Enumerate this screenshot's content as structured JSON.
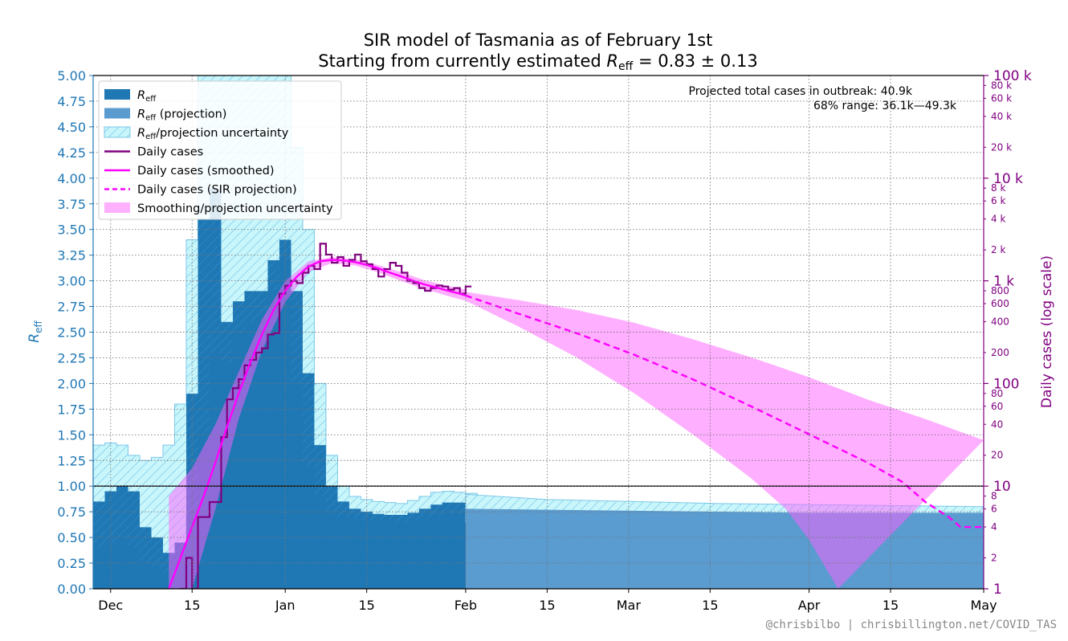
{
  "title_line1": "SIR model of Tasmania as of February 1st",
  "title_line2": "Starting from currently estimated R_eff = 0.83 ± 0.13",
  "ylabel_left": "R_eff",
  "ylabel_right": "Daily cases (log scale)",
  "annotation_line1": "Projected total cases in outbreak:  40.9k",
  "annotation_line2": "68% range:  36.1k—49.3k",
  "credit": "@chrisbilbo | chrisbillington.net/COVID_TAS",
  "legend": [
    {
      "label": "R_eff",
      "kind": "rect",
      "color": "#1f77b4"
    },
    {
      "label": "R_eff (projection)",
      "kind": "rect",
      "color": "#5a9bd0"
    },
    {
      "label": "R_eff/projection uncertainty",
      "kind": "hatch",
      "color": "#a8f0f8"
    },
    {
      "label": "Daily cases",
      "kind": "line",
      "color": "#800080"
    },
    {
      "label": "Daily cases (smoothed)",
      "kind": "line",
      "color": "#ff00ff"
    },
    {
      "label": "Daily cases (SIR projection)",
      "kind": "dash",
      "color": "#ff00ff"
    },
    {
      "label": "Smoothing/projection uncertainty",
      "kind": "rect",
      "color": "#ffb0ff"
    }
  ],
  "chart_data": {
    "type": "line",
    "x_axis": {
      "range_days": [
        -33,
        120
      ],
      "note_origin": "day 0 = Jan 1",
      "ticks": [
        {
          "day": -30,
          "label": "Dec"
        },
        {
          "day": -16,
          "label": "15"
        },
        {
          "day": 0,
          "label": "Jan"
        },
        {
          "day": 14,
          "label": "15"
        },
        {
          "day": 31,
          "label": "Feb"
        },
        {
          "day": 45,
          "label": "15"
        },
        {
          "day": 59,
          "label": "Mar"
        },
        {
          "day": 73,
          "label": "15"
        },
        {
          "day": 90,
          "label": "Apr"
        },
        {
          "day": 104,
          "label": "15"
        },
        {
          "day": 120,
          "label": "May"
        }
      ]
    },
    "y_left": {
      "range": [
        0,
        5
      ],
      "ticks": [
        "0.00",
        "0.25",
        "0.50",
        "0.75",
        "1.00",
        "1.25",
        "1.50",
        "1.75",
        "2.00",
        "2.25",
        "2.50",
        "2.75",
        "3.00",
        "3.25",
        "3.50",
        "3.75",
        "4.00",
        "4.25",
        "4.50",
        "4.75",
        "5.00"
      ]
    },
    "y_right": {
      "scale": "log",
      "range": [
        1,
        100000
      ],
      "major_ticks": [
        {
          "v": 1,
          "label": "1"
        },
        {
          "v": 10,
          "label": "10"
        },
        {
          "v": 100,
          "label": "100"
        },
        {
          "v": 1000,
          "label": "1 k"
        },
        {
          "v": 10000,
          "label": "10 k"
        },
        {
          "v": 100000,
          "label": "100 k"
        }
      ],
      "minor_ticks": [
        {
          "v": 2,
          "label": "2"
        },
        {
          "v": 4,
          "label": "4"
        },
        {
          "v": 6,
          "label": "6"
        },
        {
          "v": 8,
          "label": "8"
        },
        {
          "v": 20,
          "label": "20"
        },
        {
          "v": 40,
          "label": "40"
        },
        {
          "v": 60,
          "label": "60"
        },
        {
          "v": 80,
          "label": "80"
        },
        {
          "v": 200,
          "label": "200"
        },
        {
          "v": 400,
          "label": "400"
        },
        {
          "v": 600,
          "label": "600"
        },
        {
          "v": 800,
          "label": "800"
        },
        {
          "v": 2000,
          "label": "2 k"
        },
        {
          "v": 4000,
          "label": "4 k"
        },
        {
          "v": 6000,
          "label": "6 k"
        },
        {
          "v": 8000,
          "label": "8 k"
        },
        {
          "v": 20000,
          "label": "20 k"
        },
        {
          "v": 40000,
          "label": "40 k"
        },
        {
          "v": 60000,
          "label": "60 k"
        },
        {
          "v": 80000,
          "label": "80 k"
        }
      ]
    },
    "reference_line": 1.0,
    "reff": [
      [
        -33,
        0.85
      ],
      [
        -31,
        0.95
      ],
      [
        -29,
        1.0
      ],
      [
        -27,
        0.95
      ],
      [
        -25,
        0.6
      ],
      [
        -23,
        0.5
      ],
      [
        -21,
        0.35
      ],
      [
        -19,
        0.45
      ],
      [
        -17,
        1.9
      ],
      [
        -15,
        3.6
      ],
      [
        -13,
        3.9
      ],
      [
        -11,
        2.6
      ],
      [
        -9,
        2.8
      ],
      [
        -7,
        2.9
      ],
      [
        -5,
        2.9
      ],
      [
        -3,
        3.2
      ],
      [
        -1,
        3.4
      ],
      [
        1,
        2.9
      ],
      [
        3,
        2.1
      ],
      [
        5,
        1.4
      ],
      [
        7,
        1.0
      ],
      [
        9,
        0.85
      ],
      [
        11,
        0.78
      ],
      [
        13,
        0.75
      ],
      [
        15,
        0.73
      ],
      [
        17,
        0.72
      ],
      [
        19,
        0.72
      ],
      [
        21,
        0.74
      ],
      [
        23,
        0.78
      ],
      [
        25,
        0.82
      ],
      [
        27,
        0.84
      ],
      [
        29,
        0.84
      ],
      [
        31,
        0.83
      ]
    ],
    "reff_upper": [
      [
        -33,
        1.4
      ],
      [
        -31,
        1.42
      ],
      [
        -29,
        1.4
      ],
      [
        -27,
        1.3
      ],
      [
        -25,
        1.25
      ],
      [
        -23,
        1.28
      ],
      [
        -21,
        1.4
      ],
      [
        -19,
        1.8
      ],
      [
        -17,
        3.4
      ],
      [
        -15,
        5.0
      ],
      [
        -13,
        5.0
      ],
      [
        -11,
        5.0
      ],
      [
        -9,
        5.0
      ],
      [
        -7,
        5.0
      ],
      [
        -5,
        5.0
      ],
      [
        -3,
        5.0
      ],
      [
        -1,
        5.0
      ],
      [
        1,
        4.3
      ],
      [
        3,
        3.5
      ],
      [
        5,
        2.0
      ],
      [
        7,
        1.3
      ],
      [
        9,
        1.0
      ],
      [
        11,
        0.9
      ],
      [
        13,
        0.87
      ],
      [
        15,
        0.85
      ],
      [
        17,
        0.84
      ],
      [
        19,
        0.83
      ],
      [
        21,
        0.86
      ],
      [
        23,
        0.9
      ],
      [
        25,
        0.94
      ],
      [
        27,
        0.95
      ],
      [
        29,
        0.94
      ],
      [
        31,
        0.93
      ]
    ],
    "reff_lower": [
      [
        -33,
        0.4
      ],
      [
        -31,
        0.45
      ],
      [
        -29,
        0.5
      ],
      [
        -27,
        0.4
      ],
      [
        -25,
        0.25
      ],
      [
        -23,
        0.2
      ],
      [
        -21,
        0.15
      ],
      [
        -19,
        0.2
      ],
      [
        -17,
        0.7
      ],
      [
        -15,
        1.5
      ],
      [
        -13,
        2.3
      ],
      [
        -11,
        2.2
      ],
      [
        -9,
        2.5
      ],
      [
        -7,
        2.6
      ],
      [
        -5,
        2.65
      ],
      [
        -3,
        2.9
      ],
      [
        -1,
        3.2
      ],
      [
        1,
        2.0
      ],
      [
        3,
        1.2
      ],
      [
        5,
        0.9
      ],
      [
        7,
        0.75
      ],
      [
        9,
        0.7
      ],
      [
        11,
        0.68
      ],
      [
        13,
        0.67
      ],
      [
        15,
        0.66
      ],
      [
        17,
        0.66
      ],
      [
        19,
        0.65
      ],
      [
        21,
        0.67
      ],
      [
        23,
        0.7
      ],
      [
        25,
        0.72
      ],
      [
        27,
        0.73
      ],
      [
        29,
        0.73
      ],
      [
        31,
        0.72
      ]
    ],
    "reff_projection": [
      [
        31,
        0.78
      ],
      [
        45,
        0.77
      ],
      [
        60,
        0.76
      ],
      [
        75,
        0.75
      ],
      [
        90,
        0.74
      ],
      [
        105,
        0.74
      ],
      [
        120,
        0.74
      ]
    ],
    "reff_projection_upper": [
      [
        31,
        0.92
      ],
      [
        45,
        0.87
      ],
      [
        60,
        0.85
      ],
      [
        75,
        0.83
      ],
      [
        90,
        0.82
      ],
      [
        105,
        0.81
      ],
      [
        120,
        0.8
      ]
    ],
    "reff_projection_lower": [
      [
        31,
        0.65
      ],
      [
        45,
        0.66
      ],
      [
        60,
        0.66
      ],
      [
        75,
        0.66
      ],
      [
        90,
        0.67
      ],
      [
        105,
        0.67
      ],
      [
        120,
        0.67
      ]
    ],
    "daily_cases": [
      [
        -18,
        1
      ],
      [
        -17,
        2
      ],
      [
        -16,
        1
      ],
      [
        -15,
        5
      ],
      [
        -13,
        7
      ],
      [
        -11,
        30
      ],
      [
        -10,
        70
      ],
      [
        -9,
        90
      ],
      [
        -8,
        110
      ],
      [
        -7,
        150
      ],
      [
        -6,
        170
      ],
      [
        -5,
        200
      ],
      [
        -4,
        220
      ],
      [
        -3,
        300
      ],
      [
        -2,
        310
      ],
      [
        -1,
        750
      ],
      [
        0,
        900
      ],
      [
        1,
        1000
      ],
      [
        2,
        950
      ],
      [
        3,
        1200
      ],
      [
        4,
        1400
      ],
      [
        5,
        1300
      ],
      [
        6,
        2300
      ],
      [
        7,
        1800
      ],
      [
        8,
        1500
      ],
      [
        9,
        1700
      ],
      [
        10,
        1400
      ],
      [
        11,
        1600
      ],
      [
        12,
        1800
      ],
      [
        13,
        1550
      ],
      [
        14,
        1450
      ],
      [
        15,
        1300
      ],
      [
        16,
        1100
      ],
      [
        17,
        1300
      ],
      [
        18,
        1500
      ],
      [
        19,
        1400
      ],
      [
        20,
        1200
      ],
      [
        21,
        1000
      ],
      [
        22,
        950
      ],
      [
        23,
        850
      ],
      [
        24,
        800
      ],
      [
        25,
        850
      ],
      [
        26,
        900
      ],
      [
        27,
        880
      ],
      [
        28,
        820
      ],
      [
        29,
        850
      ],
      [
        30,
        750
      ],
      [
        31,
        880
      ]
    ],
    "daily_cases_smoothed": [
      [
        -20,
        1
      ],
      [
        -18,
        2
      ],
      [
        -16,
        4
      ],
      [
        -14,
        8
      ],
      [
        -12,
        17
      ],
      [
        -10,
        38
      ],
      [
        -8,
        80
      ],
      [
        -6,
        160
      ],
      [
        -4,
        300
      ],
      [
        -2,
        520
      ],
      [
        0,
        800
      ],
      [
        2,
        1100
      ],
      [
        4,
        1380
      ],
      [
        6,
        1550
      ],
      [
        8,
        1600
      ],
      [
        10,
        1580
      ],
      [
        12,
        1520
      ],
      [
        14,
        1430
      ],
      [
        16,
        1320
      ],
      [
        18,
        1200
      ],
      [
        20,
        1100
      ],
      [
        22,
        1000
      ],
      [
        24,
        920
      ],
      [
        26,
        860
      ],
      [
        28,
        800
      ],
      [
        30,
        750
      ],
      [
        31,
        720
      ]
    ],
    "smoothing_upper": [
      [
        -20,
        8
      ],
      [
        -16,
        15
      ],
      [
        -12,
        40
      ],
      [
        -8,
        130
      ],
      [
        -4,
        420
      ],
      [
        0,
        1000
      ],
      [
        4,
        1550
      ],
      [
        8,
        1700
      ],
      [
        12,
        1620
      ],
      [
        16,
        1420
      ],
      [
        20,
        1210
      ],
      [
        24,
        1010
      ],
      [
        28,
        890
      ],
      [
        31,
        820
      ]
    ],
    "smoothing_lower": [
      [
        -20,
        0.5
      ],
      [
        -16,
        1
      ],
      [
        -12,
        6
      ],
      [
        -8,
        45
      ],
      [
        -4,
        210
      ],
      [
        0,
        620
      ],
      [
        4,
        1220
      ],
      [
        8,
        1490
      ],
      [
        12,
        1410
      ],
      [
        16,
        1210
      ],
      [
        20,
        990
      ],
      [
        24,
        830
      ],
      [
        28,
        710
      ],
      [
        31,
        640
      ]
    ],
    "sir_projection": [
      [
        31,
        720
      ],
      [
        40,
        480
      ],
      [
        50,
        310
      ],
      [
        60,
        190
      ],
      [
        70,
        110
      ],
      [
        80,
        60
      ],
      [
        90,
        32
      ],
      [
        100,
        17
      ],
      [
        106,
        11
      ],
      [
        110,
        7
      ],
      [
        114,
        5
      ],
      [
        116,
        4
      ],
      [
        120,
        4
      ]
    ],
    "projection_upper": [
      [
        31,
        780
      ],
      [
        40,
        650
      ],
      [
        50,
        520
      ],
      [
        60,
        390
      ],
      [
        70,
        270
      ],
      [
        80,
        180
      ],
      [
        90,
        115
      ],
      [
        100,
        70
      ],
      [
        110,
        45
      ],
      [
        120,
        28
      ]
    ],
    "projection_lower": [
      [
        31,
        640
      ],
      [
        40,
        360
      ],
      [
        50,
        180
      ],
      [
        60,
        80
      ],
      [
        70,
        32
      ],
      [
        80,
        12
      ],
      [
        86,
        6
      ],
      [
        90,
        3
      ],
      [
        95,
        1
      ]
    ]
  }
}
